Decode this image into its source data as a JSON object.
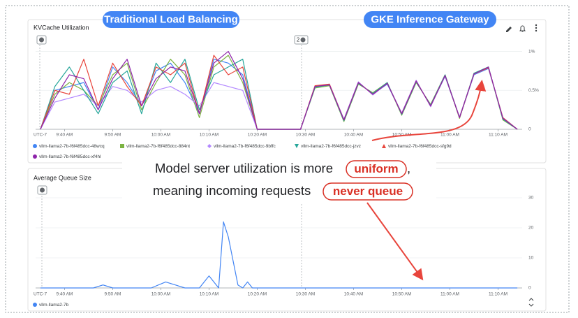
{
  "overlay": {
    "left_label": "Traditional Load Balancing",
    "right_label": "GKE Inference Gateway",
    "caption_1": "Model server utilization is more",
    "caption_1_highlight": "uniform",
    "caption_1_end": ",",
    "caption_2": "meaning incoming requests",
    "caption_2_highlight": "never queue"
  },
  "chart_data": [
    {
      "type": "line",
      "title": "KVCache Utilization",
      "timezone": "UTC-7",
      "annotations": [
        "2"
      ],
      "grid": true,
      "x": [
        575,
        578,
        581,
        584,
        587,
        590,
        593,
        596,
        599,
        602,
        605,
        608,
        611,
        614,
        617,
        620,
        623,
        626,
        629,
        632,
        635,
        638,
        641,
        644,
        647,
        650,
        653,
        656,
        659,
        662,
        665,
        668,
        671,
        674
      ],
      "xlim": [
        574,
        675
      ],
      "xticks": [
        {
          "value": 580,
          "label": "9:40 AM"
        },
        {
          "value": 590,
          "label": "9:50 AM"
        },
        {
          "value": 600,
          "label": "10:00 AM"
        },
        {
          "value": 610,
          "label": "10:10 AM"
        },
        {
          "value": 620,
          "label": "10:20 AM"
        },
        {
          "value": 630,
          "label": "10:30 AM"
        },
        {
          "value": 640,
          "label": "10:40 AM"
        },
        {
          "value": 650,
          "label": "10:50 AM"
        },
        {
          "value": 660,
          "label": "11:00 AM"
        },
        {
          "value": 670,
          "label": "11:10 AM"
        }
      ],
      "ylim": [
        0,
        1.05
      ],
      "yticks": [
        0,
        {
          "value": 0.5,
          "label": "0.5%"
        },
        {
          "value": 1,
          "label": "1%"
        }
      ],
      "series": [
        {
          "name": "vllm-llama2-7b-f6f485dcc-48wcq",
          "color": "#4285f4",
          "marker": "circle",
          "values": [
            0,
            0.5,
            0.55,
            0.6,
            0.25,
            0.8,
            0.6,
            0.3,
            0.75,
            0.85,
            0.6,
            0.2,
            0.9,
            0.85,
            0.7,
            0,
            0,
            0,
            0,
            0.55,
            0.57,
            0.12,
            0.6,
            0.45,
            0.58,
            0.2,
            0.62,
            0.3,
            0.68,
            0.15,
            0.7,
            0.78,
            0.15,
            0
          ]
        },
        {
          "name": "vllm-llama2-7b-f6f485dcc-884nt",
          "color": "#7cb342",
          "marker": "square",
          "values": [
            0,
            0.45,
            0.6,
            0.5,
            0.3,
            0.7,
            0.85,
            0.25,
            0.6,
            0.9,
            0.7,
            0.15,
            0.8,
            0.95,
            0.6,
            0,
            0,
            0,
            0,
            0.53,
            0.56,
            0.1,
            0.58,
            0.47,
            0.6,
            0.18,
            0.6,
            0.32,
            0.7,
            0.14,
            0.72,
            0.8,
            0.12,
            0
          ]
        },
        {
          "name": "vllm-llama2-7b-f6f485dcc-9bffc",
          "color": "#b388ff",
          "marker": "diamond",
          "values": [
            0,
            0.35,
            0.4,
            0.45,
            0.3,
            0.55,
            0.5,
            0.35,
            0.5,
            0.55,
            0.45,
            0.3,
            0.6,
            0.55,
            0.5,
            0,
            0,
            0,
            0,
            0.55,
            0.58,
            0.13,
            0.61,
            0.44,
            0.59,
            0.21,
            0.63,
            0.29,
            0.69,
            0.16,
            0.71,
            0.79,
            0.14,
            0
          ]
        },
        {
          "name": "vllm-llama2-7b-f6f485dcc-jzvz",
          "color": "#26a69a",
          "marker": "triangle-down",
          "values": [
            0,
            0.55,
            0.8,
            0.5,
            0.2,
            0.6,
            0.75,
            0.2,
            0.85,
            0.6,
            0.9,
            0.25,
            0.7,
            0.8,
            0.9,
            0,
            0,
            0,
            0,
            0.54,
            0.57,
            0.11,
            0.59,
            0.46,
            0.6,
            0.19,
            0.61,
            0.31,
            0.7,
            0.15,
            0.72,
            0.8,
            0.13,
            0
          ]
        },
        {
          "name": "vllm-llama2-7b-f6f485dcc-sfg9d",
          "color": "#e8453c",
          "marker": "triangle",
          "values": [
            0,
            0.5,
            0.45,
            0.9,
            0.3,
            0.85,
            0.55,
            0.3,
            0.8,
            0.7,
            0.85,
            0.2,
            0.95,
            0.7,
            0.8,
            0,
            0,
            0,
            0,
            0.56,
            0.58,
            0.12,
            0.6,
            0.45,
            0.59,
            0.2,
            0.62,
            0.3,
            0.69,
            0.15,
            0.71,
            0.79,
            0.15,
            0
          ]
        },
        {
          "name": "vllm-llama2-7b-f6f485dcc-xf4hl",
          "color": "#8e24aa",
          "marker": "circle",
          "values": [
            0,
            0.4,
            0.7,
            0.65,
            0.25,
            0.65,
            0.9,
            0.3,
            0.65,
            0.8,
            0.75,
            0.2,
            0.85,
            1.0,
            0.65,
            0,
            0,
            0,
            0,
            0.55,
            0.57,
            0.12,
            0.6,
            0.45,
            0.59,
            0.2,
            0.62,
            0.3,
            0.69,
            0.15,
            0.71,
            0.8,
            0.14,
            0
          ]
        }
      ]
    },
    {
      "type": "line",
      "title": "Average Queue Size",
      "timezone": "UTC-7",
      "grid": true,
      "x": [
        575,
        586,
        588,
        590,
        598,
        601,
        603,
        605,
        608,
        610,
        612,
        613,
        614,
        616,
        617,
        618,
        619,
        620,
        674
      ],
      "xlim": [
        574,
        675
      ],
      "xticks": [
        {
          "value": 580,
          "label": "9:40 AM"
        },
        {
          "value": 590,
          "label": "9:50 AM"
        },
        {
          "value": 600,
          "label": "10:00 AM"
        },
        {
          "value": 610,
          "label": "10:10 AM"
        },
        {
          "value": 620,
          "label": "10:20 AM"
        },
        {
          "value": 630,
          "label": "10:30 AM"
        },
        {
          "value": 640,
          "label": "10:40 AM"
        },
        {
          "value": 650,
          "label": "10:50 AM"
        },
        {
          "value": 660,
          "label": "11:00 AM"
        },
        {
          "value": 670,
          "label": "11:10 AM"
        }
      ],
      "ylim": [
        0,
        30
      ],
      "yticks": [
        0,
        10,
        20,
        30
      ],
      "series": [
        {
          "name": "vllm-llama2-7b",
          "color": "#4285f4",
          "marker": "circle",
          "values": [
            0,
            0,
            1,
            0,
            0,
            2,
            1,
            0,
            0,
            4,
            0,
            22,
            17,
            1,
            0,
            2,
            0,
            0,
            0
          ]
        }
      ]
    }
  ]
}
